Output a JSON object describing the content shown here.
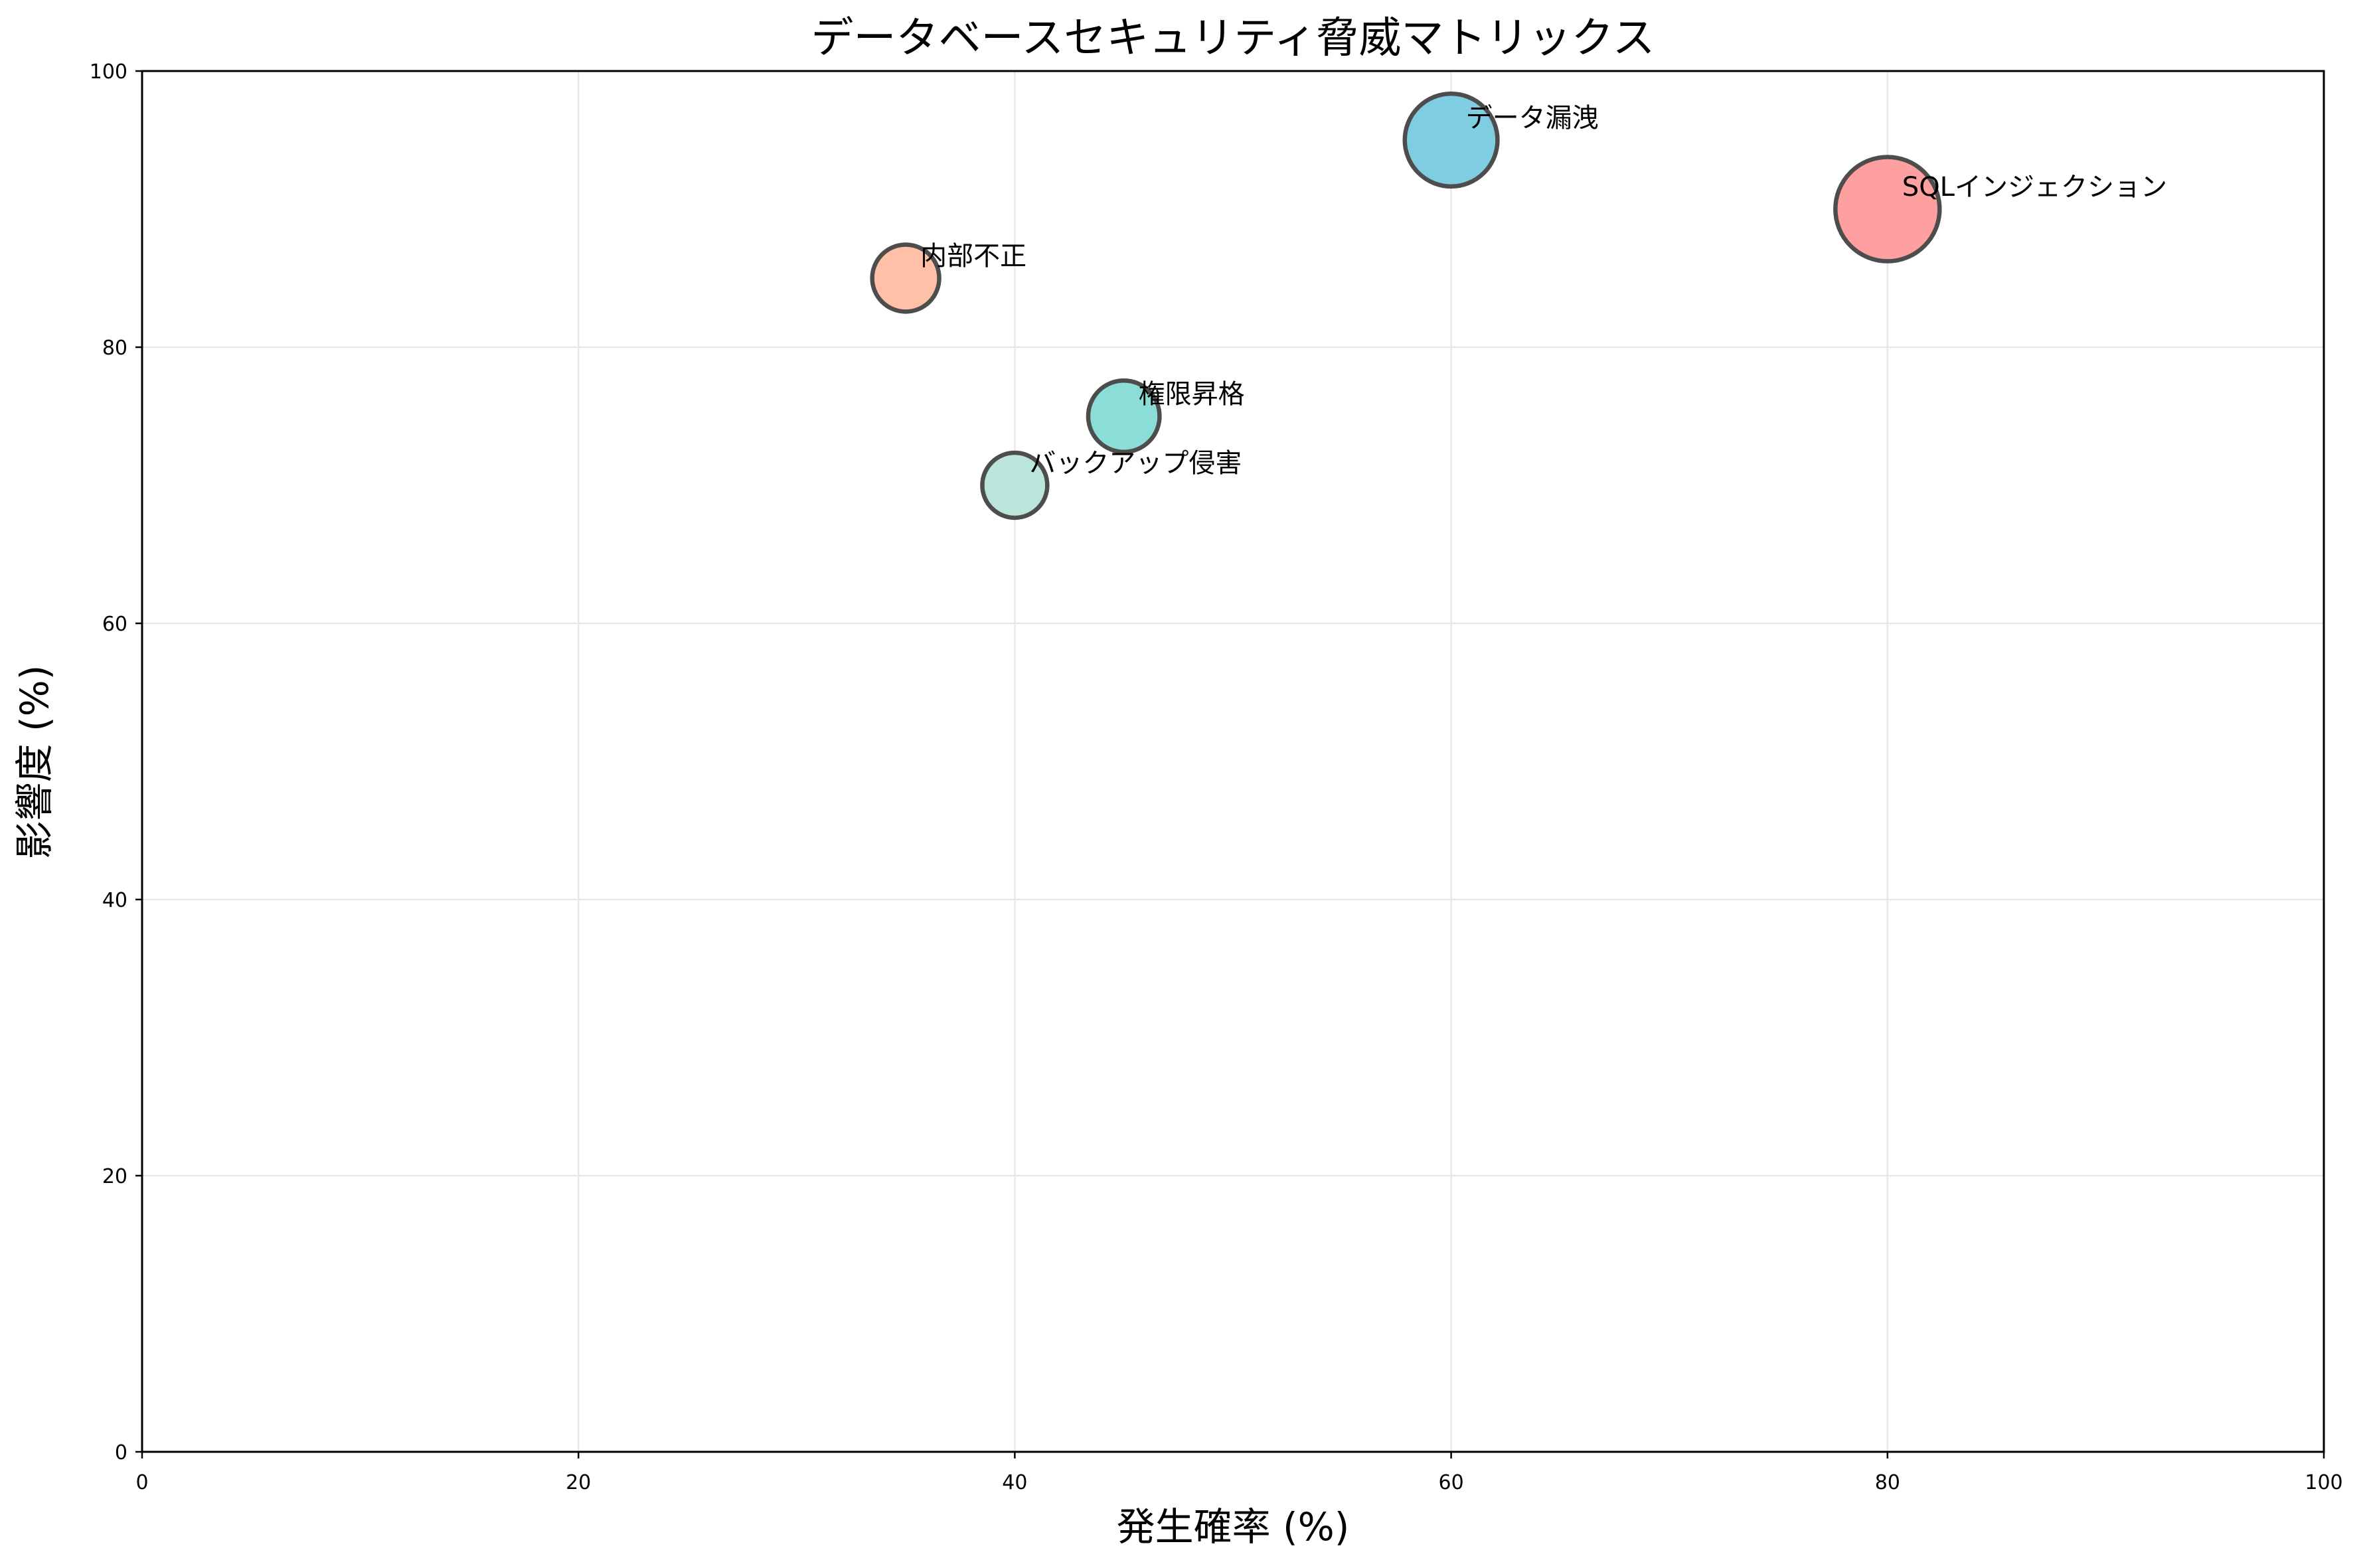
{
  "chart_data": {
    "type": "scatter",
    "title": "データベースセキュリティ脅威マトリックス",
    "xlabel": "発生確率 (%)",
    "ylabel": "影響度 (%)",
    "xlim": [
      0,
      100
    ],
    "ylim": [
      0,
      100
    ],
    "xticks": [
      0,
      20,
      40,
      60,
      80,
      100
    ],
    "yticks": [
      0,
      20,
      40,
      60,
      80,
      100
    ],
    "grid": true,
    "marker_edge_color": "#4D4D4D",
    "points": [
      {
        "label": "SQLインジェクション",
        "x": 80,
        "y": 90,
        "size": 7200,
        "color": "#FFA0A0"
      },
      {
        "label": "権限昇格",
        "x": 45,
        "y": 75,
        "size": 3375,
        "color": "#8ADED7"
      },
      {
        "label": "データ漏洩",
        "x": 60,
        "y": 95,
        "size": 5700,
        "color": "#7FCDE0"
      },
      {
        "label": "内部不正",
        "x": 35,
        "y": 85,
        "size": 2975,
        "color": "#FFC0A8"
      },
      {
        "label": "バックアップ侵害",
        "x": 40,
        "y": 70,
        "size": 2800,
        "color": "#BBE5DA"
      }
    ]
  }
}
